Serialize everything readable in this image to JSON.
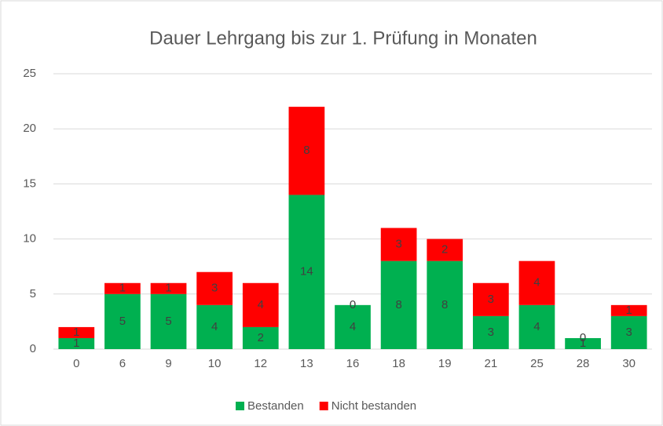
{
  "chart_data": {
    "type": "stacked_bar",
    "title": "Dauer Lehrgang bis zur 1. Prüfung in Monaten",
    "categories": [
      "0",
      "6",
      "9",
      "10",
      "12",
      "13",
      "16",
      "18",
      "19",
      "21",
      "25",
      "28",
      "30"
    ],
    "series": [
      {
        "name": "Bestanden",
        "color": "#00b050",
        "values": [
          1,
          5,
          5,
          4,
          2,
          14,
          4,
          8,
          8,
          3,
          4,
          1,
          3
        ]
      },
      {
        "name": "Nicht bestanden",
        "color": "#ff0000",
        "values": [
          1,
          1,
          1,
          3,
          4,
          8,
          0,
          3,
          2,
          3,
          4,
          0,
          1
        ]
      }
    ],
    "ylim": [
      0,
      25
    ],
    "yticks": [
      0,
      5,
      10,
      15,
      20,
      25
    ],
    "grid": true,
    "legend": "bottom"
  }
}
